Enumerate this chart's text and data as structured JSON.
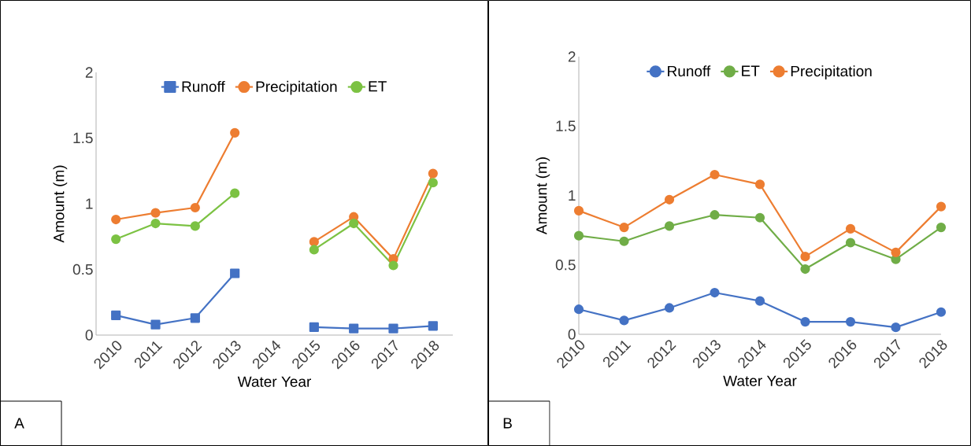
{
  "chart_data": [
    {
      "type": "line",
      "xlabel": "Water Year",
      "ylabel": "Amount (m)",
      "categories": [
        "2010",
        "2011",
        "2012",
        "2013",
        "2014",
        "2015",
        "2016",
        "2017",
        "2018"
      ],
      "ylim": [
        0,
        2
      ],
      "yticks": [
        0,
        0.5,
        1,
        1.5,
        2
      ],
      "legend": "top",
      "annotations": [
        "A"
      ],
      "series": [
        {
          "name": "Runoff",
          "color": "#4472c4",
          "marker": "square",
          "values": [
            0.15,
            0.08,
            0.13,
            0.47,
            null,
            0.06,
            0.05,
            0.05,
            0.07
          ]
        },
        {
          "name": "Precipitation",
          "color": "#ed7d31",
          "marker": "circle",
          "values": [
            0.88,
            0.93,
            0.97,
            1.54,
            null,
            0.71,
            0.9,
            0.58,
            1.23
          ]
        },
        {
          "name": "ET",
          "color": "#7cc243",
          "marker": "circle",
          "values": [
            0.73,
            0.85,
            0.83,
            1.08,
            null,
            0.65,
            0.85,
            0.53,
            1.16
          ]
        }
      ]
    },
    {
      "type": "line",
      "xlabel": "Water Year",
      "ylabel": "Amount (m)",
      "categories": [
        "2010",
        "2011",
        "2012",
        "2013",
        "2014",
        "2015",
        "2016",
        "2017",
        "2018"
      ],
      "ylim": [
        0,
        2
      ],
      "yticks": [
        0,
        0.5,
        1,
        1.5,
        2
      ],
      "legend": "top",
      "annotations": [
        "B"
      ],
      "series": [
        {
          "name": "Runoff",
          "color": "#4472c4",
          "marker": "circle",
          "values": [
            0.18,
            0.1,
            0.19,
            0.3,
            0.24,
            0.09,
            0.09,
            0.05,
            0.16
          ]
        },
        {
          "name": "ET",
          "color": "#70ad47",
          "marker": "circle",
          "values": [
            0.71,
            0.67,
            0.78,
            0.86,
            0.84,
            0.47,
            0.66,
            0.54,
            0.77
          ]
        },
        {
          "name": "Precipitation",
          "color": "#ed7d31",
          "marker": "circle",
          "values": [
            0.89,
            0.77,
            0.97,
            1.15,
            1.08,
            0.56,
            0.76,
            0.59,
            0.92
          ]
        }
      ]
    }
  ]
}
